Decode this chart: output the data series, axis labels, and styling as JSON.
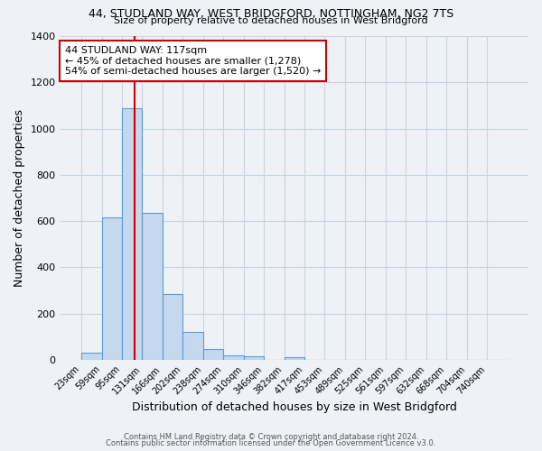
{
  "title_line1": "44, STUDLAND WAY, WEST BRIDGFORD, NOTTINGHAM, NG2 7TS",
  "title_line2": "Size of property relative to detached houses in West Bridgford",
  "xlabel": "Distribution of detached houses by size in West Bridgford",
  "ylabel": "Number of detached properties",
  "bin_labels": [
    "23sqm",
    "59sqm",
    "95sqm",
    "131sqm",
    "166sqm",
    "202sqm",
    "238sqm",
    "274sqm",
    "310sqm",
    "346sqm",
    "382sqm",
    "417sqm",
    "453sqm",
    "489sqm",
    "525sqm",
    "561sqm",
    "597sqm",
    "632sqm",
    "668sqm",
    "704sqm",
    "740sqm"
  ],
  "bin_values": [
    30,
    615,
    1090,
    635,
    285,
    120,
    47,
    20,
    15,
    0,
    12,
    0,
    0,
    0,
    0,
    0,
    0,
    0,
    0,
    0,
    0
  ],
  "bar_color": "#c5d8ed",
  "bar_edge_color": "#5b9bd5",
  "vline_color": "#cc0000",
  "annotation_text": "44 STUDLAND WAY: 117sqm\n← 45% of detached houses are smaller (1,278)\n54% of semi-detached houses are larger (1,520) →",
  "annotation_box_color": "#ffffff",
  "annotation_box_edge_color": "#cc0000",
  "ylim": [
    0,
    1400
  ],
  "yticks": [
    0,
    200,
    400,
    600,
    800,
    1000,
    1200,
    1400
  ],
  "footer_line1": "Contains HM Land Registry data © Crown copyright and database right 2024.",
  "footer_line2": "Contains public sector information licensed under the Open Government Licence v3.0.",
  "bg_color": "#eef2f7",
  "plot_bg_color": "#eef2f7",
  "grid_color": "#c8d4e0"
}
